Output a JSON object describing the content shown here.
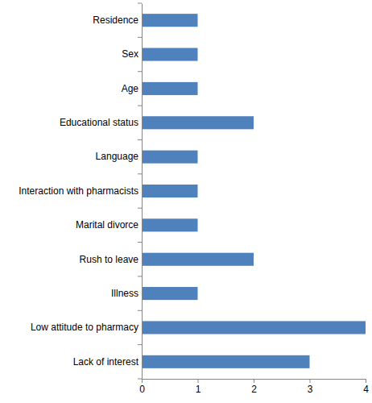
{
  "chart_data": {
    "type": "bar",
    "orientation": "horizontal",
    "categories": [
      "Residence",
      "Sex",
      "Age",
      "Educational status",
      "Language",
      "Interaction with pharmacists",
      "Marital divorce",
      "Rush to leave",
      "Illness",
      "Low attitude to pharmacy",
      "Lack of interest"
    ],
    "values": [
      1,
      1,
      1,
      2,
      1,
      1,
      1,
      2,
      1,
      4,
      3
    ],
    "color": "#4f81bd",
    "xlim": [
      0,
      4
    ],
    "xticks": [
      0,
      1,
      2,
      3,
      4
    ],
    "grid": false
  }
}
